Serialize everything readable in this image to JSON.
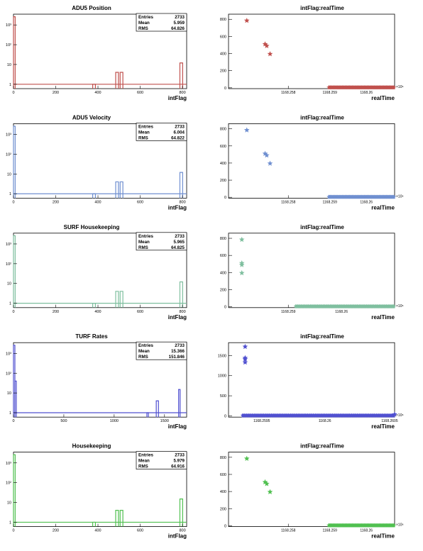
{
  "colors": {
    "red": "#c0504d",
    "blue": "#6f8fd0",
    "teal": "#7fbf9f",
    "indigo": "#5050d0",
    "green": "#50c050"
  },
  "charts": [
    {
      "id": "adu5-position",
      "color_key": "red",
      "hist": {
        "type": "bar",
        "title": "ADU5 Position",
        "xlabel": "intFlag",
        "ylog": true,
        "yticks": [
          {
            "v": 1,
            "label": "1"
          },
          {
            "v": 10,
            "label": "10"
          },
          {
            "v": 100,
            "label": "10²"
          },
          {
            "v": 1000,
            "label": "10³"
          }
        ],
        "ylim": [
          0.6,
          3500
        ],
        "xlim": [
          0,
          820
        ],
        "xticks": [
          0,
          200,
          400,
          600,
          800
        ],
        "bins": [
          [
            0,
            8,
            2600
          ],
          [
            375,
            388,
            1
          ],
          [
            484,
            497,
            4
          ],
          [
            505,
            518,
            4
          ],
          [
            788,
            801,
            12
          ]
        ],
        "stats": {
          "entries_label": "Entries",
          "entries": "2733",
          "mean_label": "Mean",
          "mean": "5.959",
          "rms_label": "RMS",
          "rms": "64.826"
        }
      },
      "scatter": {
        "type": "scatter",
        "title": "intFlag:realTime",
        "xlabel": "realTime",
        "xlim": [
          0,
          1
        ],
        "ylim": [
          -10,
          860
        ],
        "yticks": [
          0,
          200,
          400,
          600,
          800
        ],
        "xticks": [
          {
            "pos": 0.36,
            "label": "1168.258"
          },
          {
            "pos": 0.61,
            "label": "1168.259"
          },
          {
            "pos": 0.83,
            "label": "1168.26"
          }
        ],
        "exponent": "×10⁶",
        "points": [
          [
            0.11,
            785
          ],
          [
            0.22,
            510
          ],
          [
            0.23,
            490
          ],
          [
            0.25,
            395
          ]
        ],
        "band": [
          0.6,
          1.0,
          0
        ],
        "band_count": 45
      }
    },
    {
      "id": "adu5-velocity",
      "color_key": "blue",
      "hist": {
        "type": "bar",
        "title": "ADU5 Velocity",
        "xlabel": "intFlag",
        "ylog": true,
        "yticks": [
          {
            "v": 1,
            "label": "1"
          },
          {
            "v": 10,
            "label": "10"
          },
          {
            "v": 100,
            "label": "10²"
          },
          {
            "v": 1000,
            "label": "10³"
          }
        ],
        "ylim": [
          0.6,
          3500
        ],
        "xlim": [
          0,
          820
        ],
        "xticks": [
          0,
          200,
          400,
          600,
          800
        ],
        "bins": [
          [
            0,
            8,
            2600
          ],
          [
            375,
            388,
            1
          ],
          [
            484,
            497,
            4
          ],
          [
            505,
            518,
            4
          ],
          [
            788,
            801,
            12
          ]
        ],
        "stats": {
          "entries_label": "Entries",
          "entries": "2733",
          "mean_label": "Mean",
          "mean": "6.004",
          "rms_label": "RMS",
          "rms": "64.822"
        }
      },
      "scatter": {
        "type": "scatter",
        "title": "intFlag:realTime",
        "xlabel": "realTime",
        "xlim": [
          0,
          1
        ],
        "ylim": [
          -10,
          860
        ],
        "yticks": [
          0,
          200,
          400,
          600,
          800
        ],
        "xticks": [
          {
            "pos": 0.36,
            "label": "1168.258"
          },
          {
            "pos": 0.61,
            "label": "1168.259"
          },
          {
            "pos": 0.83,
            "label": "1168.26"
          }
        ],
        "exponent": "×10⁶",
        "points": [
          [
            0.11,
            785
          ],
          [
            0.22,
            510
          ],
          [
            0.23,
            490
          ],
          [
            0.25,
            395
          ]
        ],
        "band": [
          0.6,
          1.0,
          0
        ],
        "band_count": 45
      }
    },
    {
      "id": "surf-housekeeping",
      "color_key": "teal",
      "hist": {
        "type": "bar",
        "title": "SURF Housekeeping",
        "xlabel": "intFlag",
        "ylog": true,
        "yticks": [
          {
            "v": 1,
            "label": "1"
          },
          {
            "v": 10,
            "label": "10"
          },
          {
            "v": 100,
            "label": "10²"
          },
          {
            "v": 1000,
            "label": "10³"
          }
        ],
        "ylim": [
          0.6,
          3500
        ],
        "xlim": [
          0,
          820
        ],
        "xticks": [
          0,
          200,
          400,
          600,
          800
        ],
        "bins": [
          [
            0,
            8,
            2600
          ],
          [
            375,
            388,
            1
          ],
          [
            484,
            497,
            4
          ],
          [
            505,
            518,
            4
          ],
          [
            788,
            801,
            12
          ]
        ],
        "stats": {
          "entries_label": "Entries",
          "entries": "2733",
          "mean_label": "Mean",
          "mean": "5.965",
          "rms_label": "RMS",
          "rms": "64.825"
        }
      },
      "scatter": {
        "type": "scatter",
        "title": "intFlag:realTime",
        "xlabel": "realTime",
        "xlim": [
          0,
          1
        ],
        "ylim": [
          -10,
          860
        ],
        "yticks": [
          0,
          200,
          400,
          600,
          800
        ],
        "xticks": [
          {
            "pos": 0.36,
            "label": "1168.259"
          },
          {
            "pos": 0.68,
            "label": "1168.26"
          }
        ],
        "exponent": "×10⁶",
        "points": [
          [
            0.08,
            785
          ],
          [
            0.08,
            510
          ],
          [
            0.08,
            490
          ],
          [
            0.08,
            395
          ]
        ],
        "band": [
          0.4,
          1.0,
          0
        ],
        "band_count": 55
      }
    },
    {
      "id": "turf-rates",
      "color_key": "indigo",
      "hist": {
        "type": "bar",
        "title": "TURF Rates",
        "xlabel": "intFlag",
        "ylog": true,
        "yticks": [
          {
            "v": 1,
            "label": "1"
          },
          {
            "v": 10,
            "label": "10"
          },
          {
            "v": 100,
            "label": "10²"
          },
          {
            "v": 1000,
            "label": "10³"
          }
        ],
        "ylim": [
          0.6,
          3500
        ],
        "xlim": [
          0,
          1720
        ],
        "xticks": [
          0,
          500,
          1000,
          1500
        ],
        "bins": [
          [
            0,
            14,
            2600
          ],
          [
            14,
            28,
            40
          ],
          [
            1325,
            1340,
            1
          ],
          [
            1418,
            1440,
            4
          ],
          [
            1640,
            1655,
            15
          ]
        ],
        "stats": {
          "entries_label": "Entries",
          "entries": "2733",
          "mean_label": "Mean",
          "mean": "15.366",
          "rms_label": "RMS",
          "rms": "151.846"
        }
      },
      "scatter": {
        "type": "scatter",
        "title": "intFlag:realTime",
        "xlabel": "realTime",
        "xlim": [
          0,
          1
        ],
        "ylim": [
          -30,
          1820
        ],
        "yticks": [
          0,
          500,
          1000,
          1500
        ],
        "xticks": [
          {
            "pos": 0.2,
            "label": "1168.2595"
          },
          {
            "pos": 0.58,
            "label": "1168.26"
          },
          {
            "pos": 0.97,
            "label": "1168.2605"
          }
        ],
        "exponent": "×10⁶",
        "points": [
          [
            0.1,
            1720
          ],
          [
            0.1,
            1440
          ],
          [
            0.1,
            1410
          ],
          [
            0.1,
            1330
          ],
          [
            1.0,
            40
          ]
        ],
        "band": [
          0.08,
          1.0,
          0
        ],
        "band_count": 80
      }
    },
    {
      "id": "housekeeping",
      "color_key": "green",
      "hist": {
        "type": "bar",
        "title": "Housekeeping",
        "xlabel": "intFlag",
        "ylog": true,
        "yticks": [
          {
            "v": 1,
            "label": "1"
          },
          {
            "v": 10,
            "label": "10"
          },
          {
            "v": 100,
            "label": "10²"
          },
          {
            "v": 1000,
            "label": "10³"
          }
        ],
        "ylim": [
          0.6,
          3500
        ],
        "xlim": [
          0,
          820
        ],
        "xticks": [
          0,
          200,
          400,
          600,
          800
        ],
        "bins": [
          [
            0,
            8,
            2600
          ],
          [
            375,
            388,
            1
          ],
          [
            484,
            497,
            4
          ],
          [
            505,
            518,
            4
          ],
          [
            788,
            801,
            15
          ]
        ],
        "stats": {
          "entries_label": "Entries",
          "entries": "2733",
          "mean_label": "Mean",
          "mean": "5.979",
          "rms_label": "RMS",
          "rms": "64.916"
        }
      },
      "scatter": {
        "type": "scatter",
        "title": "intFlag:realTime",
        "xlabel": "realTime",
        "xlim": [
          0,
          1
        ],
        "ylim": [
          -10,
          860
        ],
        "yticks": [
          0,
          200,
          400,
          600,
          800
        ],
        "xticks": [
          {
            "pos": 0.36,
            "label": "1168.258"
          },
          {
            "pos": 0.61,
            "label": "1168.259"
          },
          {
            "pos": 0.83,
            "label": "1168.26"
          }
        ],
        "exponent": "×10⁶",
        "points": [
          [
            0.11,
            785
          ],
          [
            0.22,
            510
          ],
          [
            0.23,
            490
          ],
          [
            0.25,
            395
          ]
        ],
        "band": [
          0.6,
          1.0,
          0
        ],
        "band_count": 45
      }
    }
  ]
}
